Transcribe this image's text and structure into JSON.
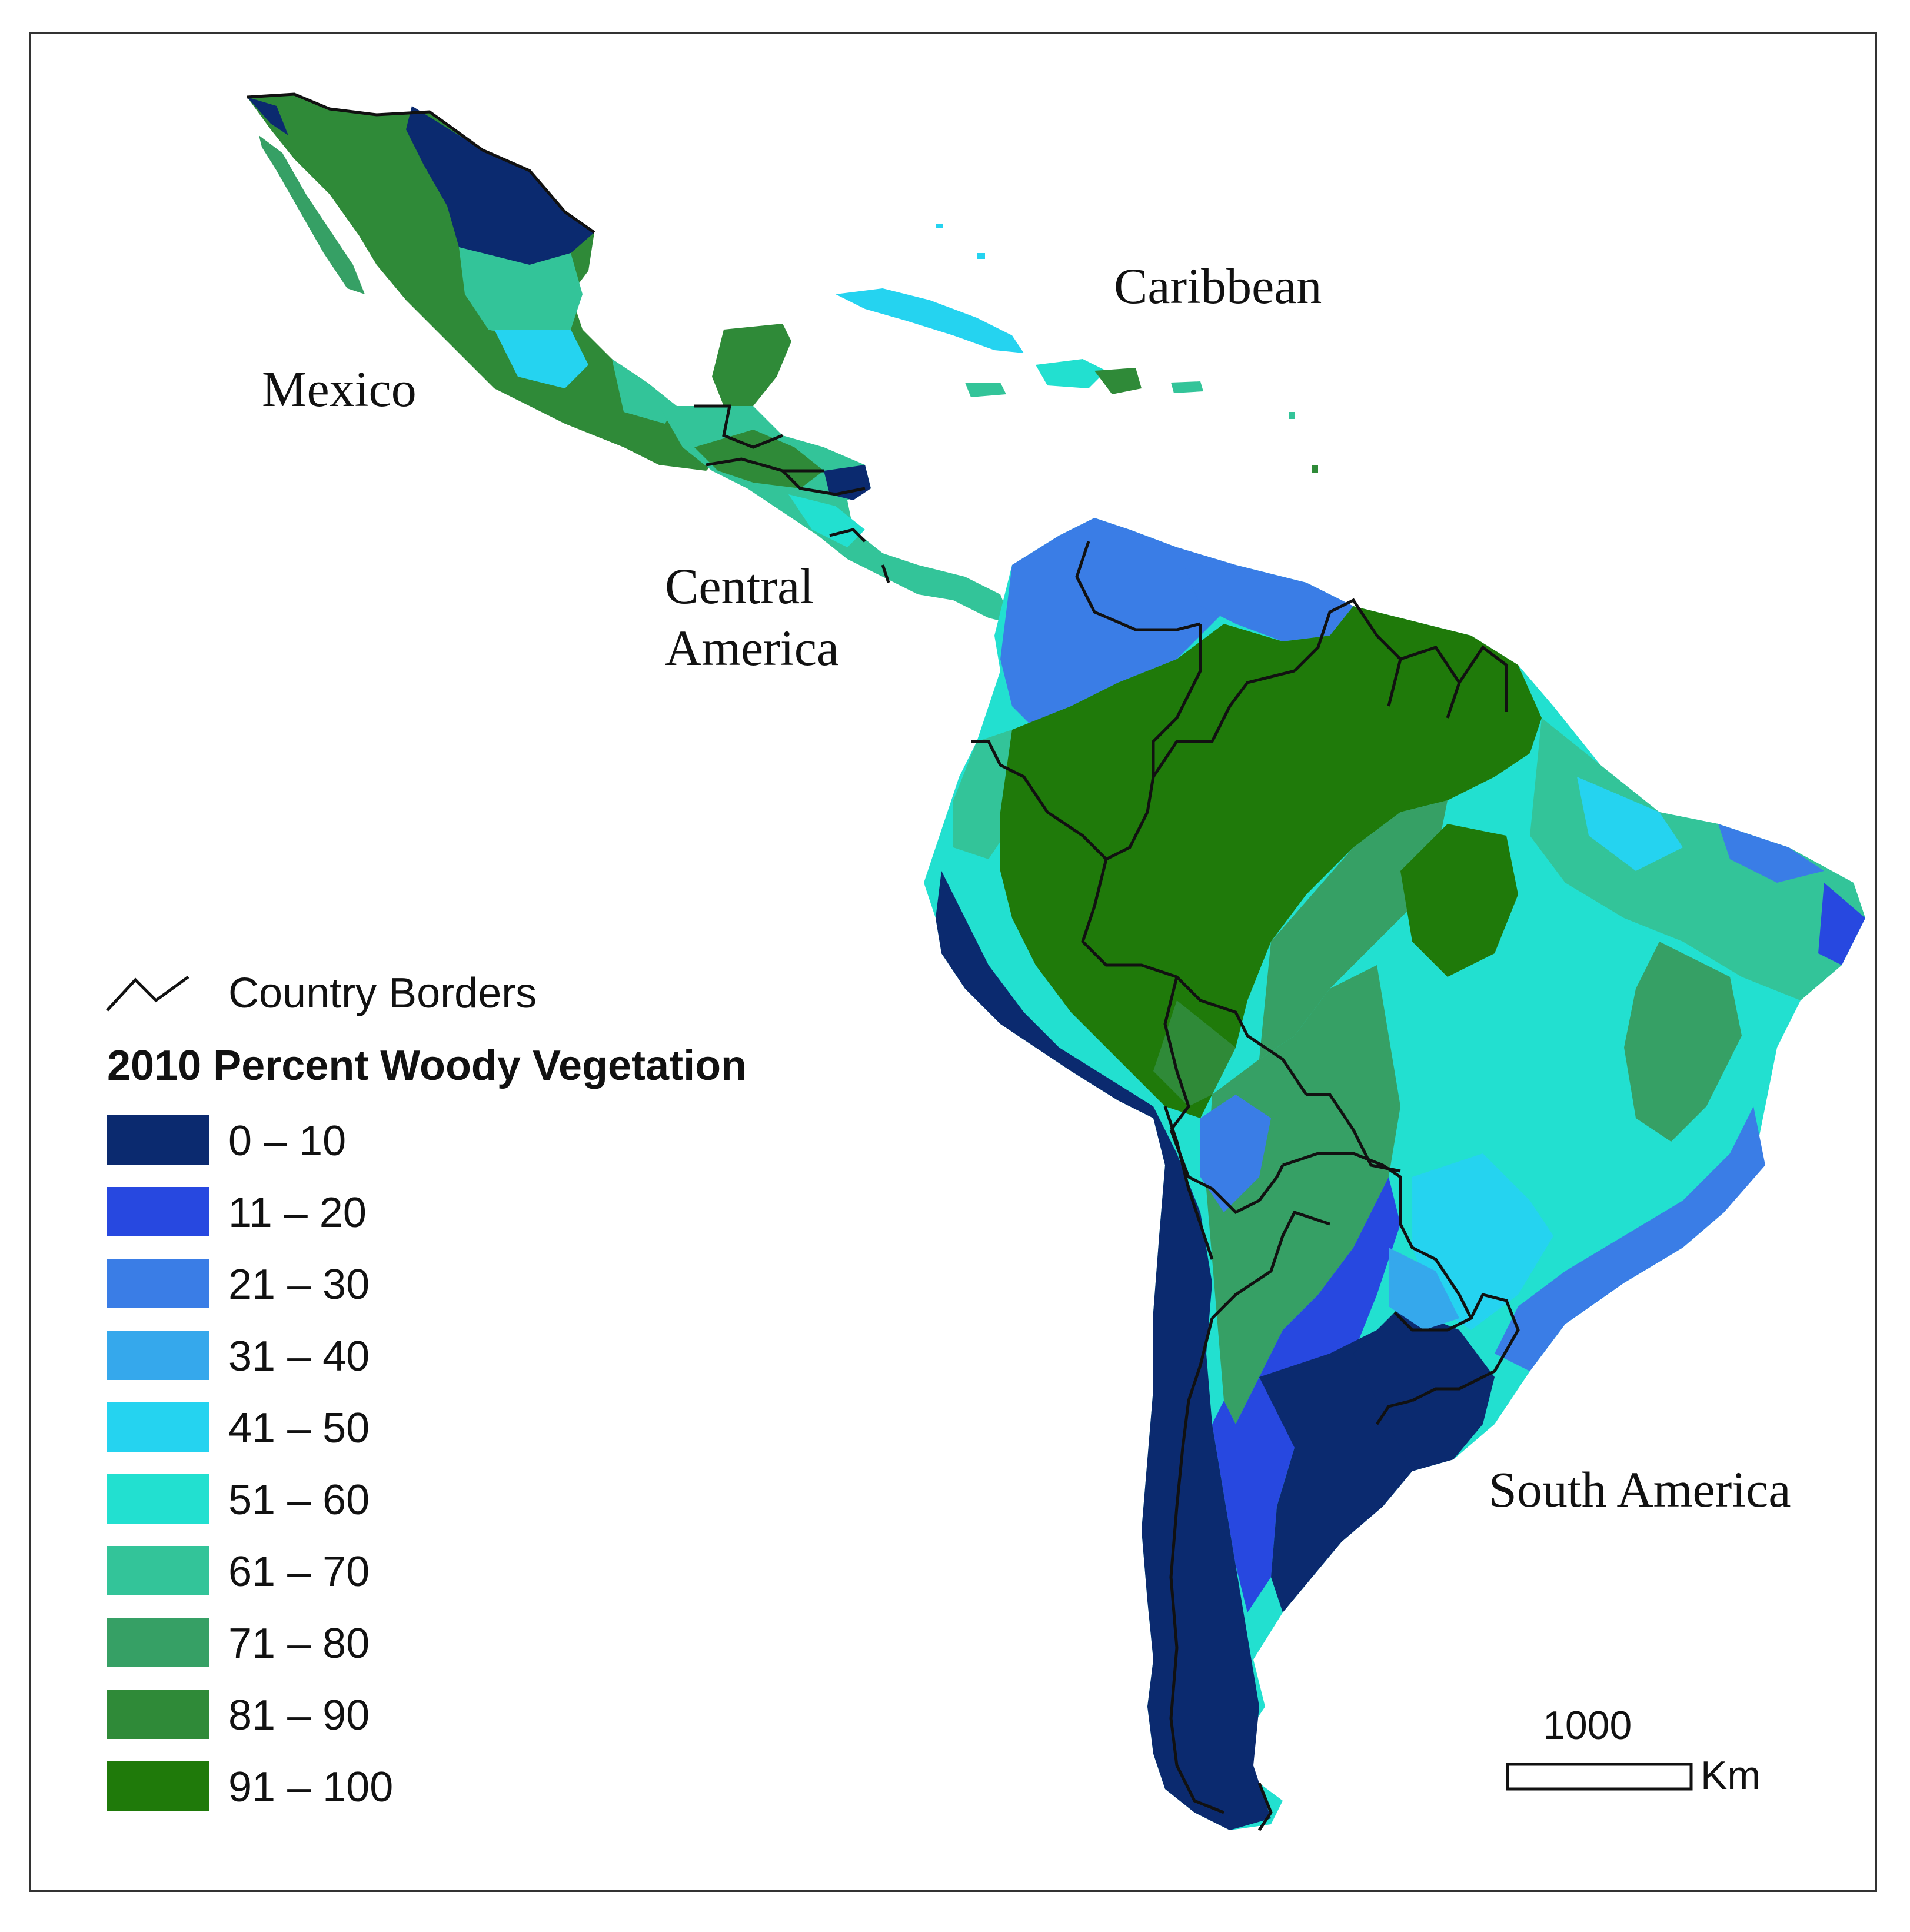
{
  "map": {
    "labels": {
      "mexico": "Mexico",
      "caribbean": "Caribbean",
      "central_america_line1": "Central",
      "central_america_line2": "America",
      "south_america": "South America"
    }
  },
  "legend": {
    "borders_label": "Country Borders",
    "title": "2010 Percent Woody Vegetation",
    "classes": [
      {
        "label": "0  – 10",
        "color": "#0b2a6f"
      },
      {
        "label": "11 – 20",
        "color": "#2748e0"
      },
      {
        "label": "21 – 30",
        "color": "#3a7de6"
      },
      {
        "label": "31 – 40",
        "color": "#35a8ec"
      },
      {
        "label": "41 – 50",
        "color": "#25d3f0"
      },
      {
        "label": "51 – 60",
        "color": "#22e0d0"
      },
      {
        "label": "61 – 70",
        "color": "#33c499"
      },
      {
        "label": "71 – 80",
        "color": "#36a065"
      },
      {
        "label": "81 – 90",
        "color": "#2f8a38"
      },
      {
        "label": "91 – 100",
        "color": "#1f7a0a"
      }
    ]
  },
  "scale_bar": {
    "value": "1000",
    "unit": "Km"
  }
}
